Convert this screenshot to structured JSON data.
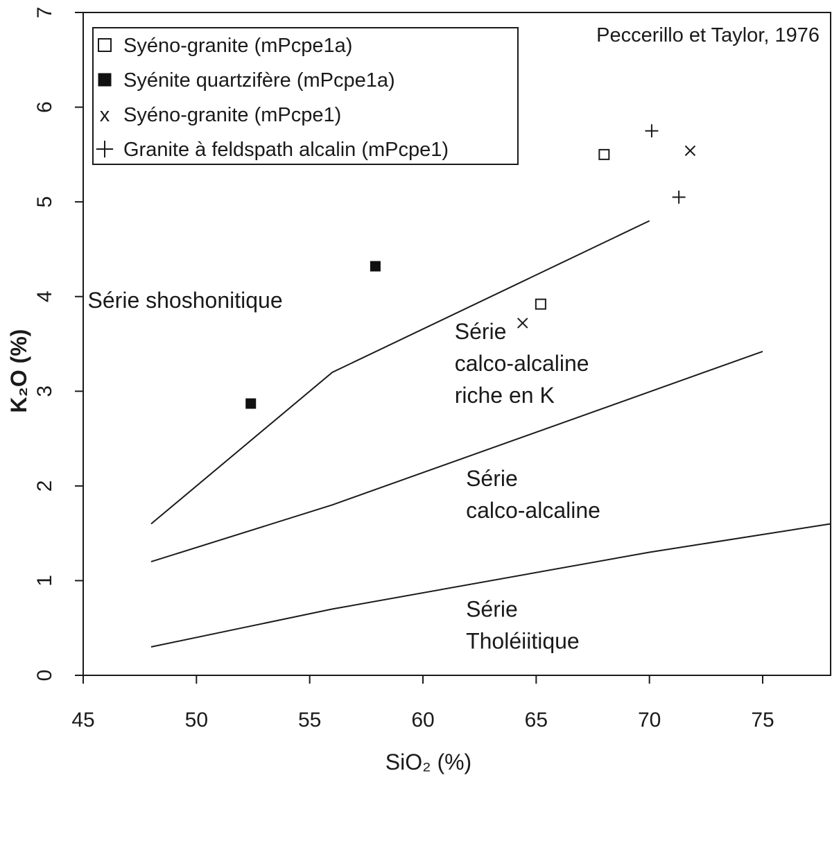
{
  "chart_data": {
    "type": "scatter",
    "credit": "Peccerillo et Taylor, 1976",
    "xlabel": "SiO₂ (%)",
    "ylabel": "K₂O (%)",
    "xlim": [
      45,
      78
    ],
    "ylim": [
      0,
      7
    ],
    "xticks": [
      45,
      50,
      55,
      60,
      65,
      70,
      75
    ],
    "yticks": [
      0,
      1,
      2,
      3,
      4,
      5,
      6,
      7
    ],
    "grid": false,
    "legend_position": "top-left",
    "series": [
      {
        "name": "Syéno-granite (mPcpe1a)",
        "marker": "open-square",
        "marker_label": "□",
        "points": [
          [
            68.0,
            5.5
          ],
          [
            65.2,
            3.92
          ]
        ]
      },
      {
        "name": "Syénite quartzifère (mPcpe1a)",
        "marker": "filled-square",
        "marker_label": "■",
        "points": [
          [
            52.4,
            2.87
          ],
          [
            57.9,
            4.32
          ]
        ]
      },
      {
        "name": "Syéno-granite (mPcpe1)",
        "marker": "x",
        "marker_label": "x",
        "points": [
          [
            71.8,
            5.54
          ],
          [
            64.4,
            3.72
          ]
        ]
      },
      {
        "name": "Granite à feldspath alcalin (mPcpe1)",
        "marker": "plus",
        "marker_label": "+",
        "points": [
          [
            70.1,
            5.75
          ],
          [
            71.3,
            5.05
          ]
        ]
      }
    ],
    "boundaries": [
      {
        "id": "shoshonitic-boundary",
        "points": [
          [
            48,
            1.6
          ],
          [
            56,
            3.2
          ],
          [
            70,
            4.8
          ]
        ]
      },
      {
        "id": "high-k-boundary",
        "points": [
          [
            48,
            1.2
          ],
          [
            56,
            1.8
          ],
          [
            75,
            3.42
          ]
        ]
      },
      {
        "id": "tholeiitic-boundary",
        "points": [
          [
            48,
            0.3
          ],
          [
            52,
            0.5
          ],
          [
            56,
            0.7
          ],
          [
            70,
            1.3
          ],
          [
            78,
            1.6
          ]
        ]
      }
    ],
    "region_labels": [
      {
        "id": "shoshonitic",
        "lines": [
          "Série shoshonitique"
        ],
        "x": 45.2,
        "y": 3.88
      },
      {
        "id": "high-k",
        "lines": [
          "Série",
          "calco-alcaline",
          "riche en K"
        ],
        "x": 61.4,
        "y": 3.55
      },
      {
        "id": "calc-alkaline",
        "lines": [
          "Série",
          "calco-alcaline"
        ],
        "x": 61.9,
        "y": 2.0
      },
      {
        "id": "tholeiitic",
        "lines": [
          "Série",
          "Tholéiitique"
        ],
        "x": 61.9,
        "y": 0.62
      }
    ]
  }
}
